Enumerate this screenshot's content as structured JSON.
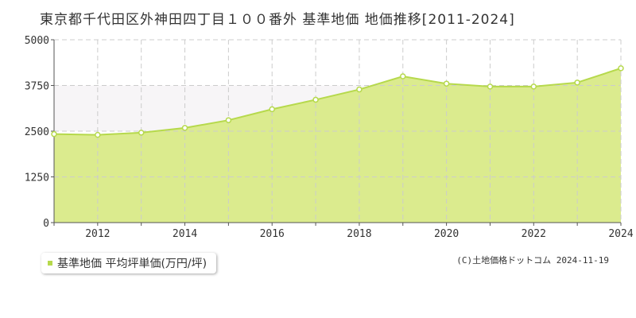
{
  "title": "東京都千代田区外神田四丁目１００番外 基準地価 地価推移[2011-2024]",
  "legend": {
    "label": "基準地価 平均坪単価(万円/坪)"
  },
  "copyright": "(C)土地価格ドットコム 2024-11-19",
  "colors": {
    "fill": "#dbeb8e",
    "line": "#b6d94c",
    "band": "#f7f5f7",
    "grid": "#cccccc"
  },
  "chart_data": {
    "type": "area",
    "x": [
      2011,
      2012,
      2013,
      2014,
      2015,
      2016,
      2017,
      2018,
      2019,
      2020,
      2021,
      2022,
      2023,
      2024
    ],
    "series": [
      {
        "name": "基準地価 平均坪単価(万円/坪)",
        "values": [
          2420,
          2400,
          2460,
          2590,
          2800,
          3100,
          3360,
          3640,
          4000,
          3800,
          3720,
          3720,
          3830,
          4220
        ]
      }
    ],
    "xticks": [
      2012,
      2014,
      2016,
      2018,
      2020,
      2022,
      2024
    ],
    "yticks": [
      0,
      1250,
      2500,
      3750,
      5000
    ],
    "xlim": [
      2011,
      2024
    ],
    "ylim": [
      0,
      5000
    ],
    "grid": true,
    "legend_position": "bottom-left"
  }
}
